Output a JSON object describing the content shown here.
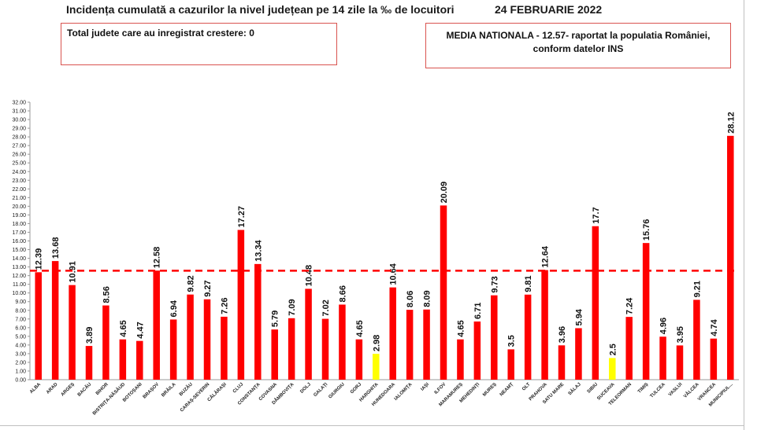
{
  "title": "Incidența cumulată a cazurilor la nivel județean pe 14 zile la ‰ de locuitori",
  "date": "24 FEBRUARIE 2022",
  "box_left_text": "Total judete care au inregistrat crestere: 0",
  "box_right_line1": "MEDIA NATIONALA - 12.57-  raportat la populatia României,",
  "box_right_line2": "conform datelor INS",
  "colors": {
    "bar": "#ff0000",
    "highlight": "#ffff00",
    "reference_line": "#ff0000"
  },
  "chart_data": {
    "type": "bar",
    "title": "Incidența cumulată a cazurilor la nivel județean pe 14 zile la ‰ de locuitori",
    "xlabel": "",
    "ylabel": "",
    "ylim": [
      0,
      32
    ],
    "yticks": [
      "0.00",
      "1.00",
      "2.00",
      "3.00",
      "4.00",
      "5.00",
      "6.00",
      "7.00",
      "8.00",
      "9.00",
      "10.00",
      "11.00",
      "12.00",
      "13.00",
      "14.00",
      "15.00",
      "16.00",
      "17.00",
      "18.00",
      "19.00",
      "20.00",
      "21.00",
      "22.00",
      "23.00",
      "24.00",
      "25.00",
      "26.00",
      "27.00",
      "28.00",
      "29.00",
      "30.00",
      "31.00",
      "32.00"
    ],
    "reference_line": 12.57,
    "grid": false,
    "categories": [
      "ALBA",
      "ARAD",
      "ARGEȘ",
      "BACĂU",
      "BIHOR",
      "BISTRIȚA-NĂSĂUD",
      "BOTOȘANI",
      "BRAȘOV",
      "BRĂILA",
      "BUZĂU",
      "CARAȘ-SEVERIN",
      "CĂLĂRAȘI",
      "CLUJ",
      "CONSTANȚA",
      "COVASNA",
      "DÂMBOVIȚA",
      "DOLJ",
      "GALAȚI",
      "GIURGIU",
      "GORJ",
      "HARGHITA",
      "HUNEDOARA",
      "IALOMIȚA",
      "IAȘI",
      "ILFOV",
      "MARAMUREȘ",
      "MEHEDINȚI",
      "MUREȘ",
      "NEAMȚ",
      "OLT",
      "PRAHOVA",
      "SATU MARE",
      "SĂLAJ",
      "SIBIU",
      "SUCEAVA",
      "TELEORMAN",
      "TIMIȘ",
      "TULCEA",
      "VASLUI",
      "VÂLCEA",
      "VRANCEA",
      "MUNICIPIUL..."
    ],
    "values": [
      12.39,
      13.68,
      10.91,
      3.89,
      8.56,
      4.65,
      4.47,
      12.58,
      6.94,
      9.82,
      9.27,
      7.26,
      17.27,
      13.34,
      5.79,
      7.09,
      10.48,
      7.02,
      8.66,
      4.65,
      2.98,
      10.64,
      8.06,
      8.09,
      20.09,
      4.65,
      6.71,
      9.73,
      3.5,
      9.81,
      12.64,
      3.96,
      5.94,
      17.7,
      2.5,
      7.24,
      15.76,
      4.96,
      3.95,
      9.21,
      4.74,
      28.12
    ],
    "value_labels": [
      "12.39",
      "13.68",
      "10.91",
      "3.89",
      "8.56",
      "4.65",
      "4.47",
      "12.58",
      "6.94",
      "9.82",
      "9.27",
      "7.26",
      "17.27",
      "13.34",
      "5.79",
      "7.09",
      "10.48",
      "7.02",
      "8.66",
      "4.65",
      "2.98",
      "10.64",
      "8.06",
      "8.09",
      "20.09",
      "4.65",
      "6.71",
      "9.73",
      "3.5",
      "9.81",
      "12.64",
      "3.96",
      "5.94",
      "17.7",
      "2.5",
      "7.24",
      "15.76",
      "4.96",
      "3.95",
      "9.21",
      "4.74",
      "28.12"
    ],
    "highlighted": [
      "HARGHITA",
      "SUCEAVA"
    ]
  }
}
